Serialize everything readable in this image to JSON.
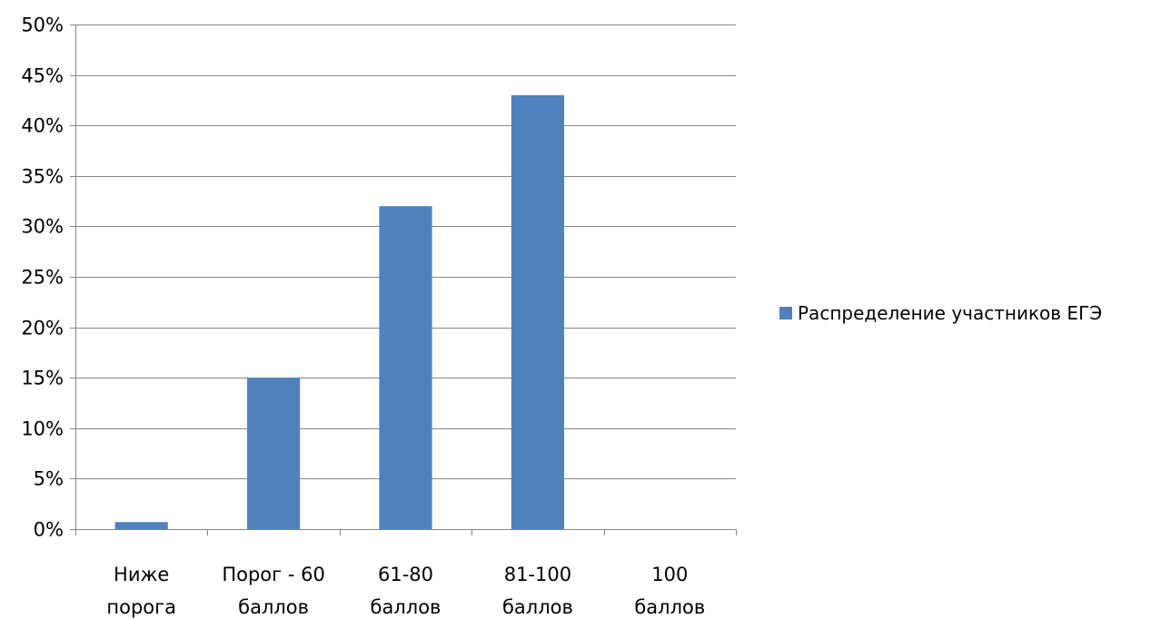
{
  "colors": {
    "bar": "#4f81bd",
    "grid": "#868686",
    "axis": "#868686"
  },
  "chart_data": {
    "type": "bar",
    "categories": [
      [
        "Ниже",
        "порога"
      ],
      [
        "Порог - 60",
        "баллов"
      ],
      [
        "61-80",
        "баллов"
      ],
      [
        "81-100",
        "баллов"
      ],
      [
        "100",
        "баллов"
      ]
    ],
    "series": [
      {
        "name": "Распределение участников ЕГЭ",
        "values": [
          0.7,
          15,
          32,
          43,
          0
        ]
      }
    ],
    "ylim": [
      0,
      50
    ],
    "ystep": 5,
    "ytick_format": "percent",
    "grid": true,
    "legend": "right"
  }
}
